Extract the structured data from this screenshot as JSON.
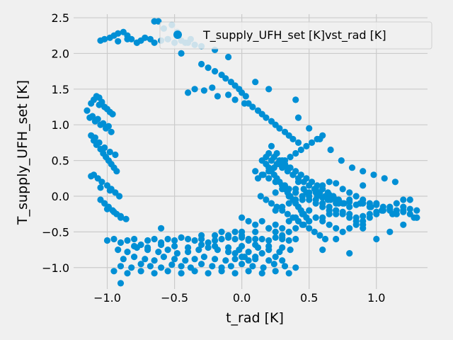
{
  "colors": {
    "background": "#f0f0f0",
    "grid": "#cbcbcb",
    "series": "#008fd5"
  },
  "chart_data": {
    "type": "scatter",
    "xlabel": "t_rad [K]",
    "ylabel": "T_supply_UFH_set [K]",
    "xlim": [
      -1.25,
      1.38
    ],
    "ylim": [
      -1.3,
      2.55
    ],
    "xticks": [
      -1.0,
      -0.5,
      0.0,
      0.5,
      1.0
    ],
    "xtick_labels": [
      "−1.0",
      "−0.5",
      "0.0",
      "0.5",
      "1.0"
    ],
    "yticks": [
      -1.0,
      -0.5,
      0.0,
      0.5,
      1.0,
      1.5,
      2.0,
      2.5
    ],
    "ytick_labels": [
      "−1.0",
      "−0.5",
      "0.0",
      "0.5",
      "1.0",
      "1.5",
      "2.0",
      "2.5"
    ],
    "grid": true,
    "legend_position": "top-right",
    "series": [
      {
        "name": "T_supply_UFH_set [K]vst_rad [K]",
        "x": [
          -1.05,
          -1.02,
          -0.98,
          -0.95,
          -0.92,
          -0.88,
          -0.85,
          -0.82,
          -0.78,
          -0.75,
          -0.72,
          -0.68,
          -0.65,
          -0.6,
          -0.55,
          -0.5,
          -0.45,
          -0.42,
          -0.38,
          -0.35,
          -0.92,
          -0.85,
          -0.78,
          -0.62,
          -0.58,
          -0.52,
          -0.48,
          -0.4,
          -0.3,
          -0.25,
          -0.2,
          -0.15,
          -0.12,
          -0.08,
          -0.05,
          -0.02,
          0.0,
          0.03,
          0.05,
          0.08,
          0.12,
          0.15,
          0.18,
          0.22,
          0.25,
          0.28,
          0.32,
          0.35,
          0.38,
          0.42,
          -0.4,
          -0.35,
          -0.28,
          -0.22,
          -0.18,
          -0.1,
          -0.05,
          0.02,
          -1.15,
          -1.12,
          -1.1,
          -1.08,
          -1.06,
          -1.04,
          -1.02,
          -1.0,
          -0.98,
          -0.96,
          -1.13,
          -1.09,
          -1.05,
          -1.01,
          -0.97,
          -1.11,
          -1.07,
          -1.03,
          -0.99,
          -1.06,
          -1.12,
          -1.1,
          -1.08,
          -1.05,
          -1.03,
          -1.01,
          -0.99,
          -0.97,
          -0.95,
          -0.93,
          -1.09,
          -1.06,
          -1.02,
          -0.98,
          -0.94,
          -1.1,
          -1.07,
          -1.04,
          -1.0,
          -0.97,
          -0.94,
          -0.91,
          -1.12,
          -1.05,
          -0.98,
          -1.05,
          -1.02,
          -0.99,
          -0.96,
          -0.93,
          -0.9,
          -1.0,
          -0.95,
          -0.9,
          -0.86,
          -1.0,
          -0.95,
          -0.9,
          -0.85,
          -0.8,
          -0.75,
          -0.7,
          -0.65,
          -0.6,
          -0.55,
          -0.5,
          -0.45,
          -0.4,
          -0.35,
          -0.3,
          -0.25,
          -0.2,
          -0.15,
          -0.1,
          -0.05,
          0.0,
          0.05,
          0.1,
          0.15,
          0.2,
          0.25,
          0.3,
          0.35,
          0.4,
          -0.92,
          -0.85,
          -0.78,
          -0.7,
          -0.62,
          -0.55,
          -0.48,
          -0.4,
          -0.32,
          -0.25,
          -0.18,
          -0.1,
          -0.02,
          0.05,
          0.12,
          0.2,
          0.28,
          0.36,
          -0.88,
          -0.8,
          -0.72,
          -0.65,
          -0.58,
          -0.5,
          -0.42,
          -0.35,
          -0.28,
          -0.2,
          -0.12,
          -0.05,
          0.02,
          0.1,
          -0.9,
          -0.82,
          -0.75,
          -0.68,
          -0.6,
          -0.52,
          -0.45,
          -0.38,
          -0.3,
          -0.22,
          -0.15,
          -0.08,
          0.0,
          0.08,
          0.16,
          0.24,
          0.32,
          0.4,
          -0.95,
          -0.85,
          -0.75,
          -0.65,
          -0.55,
          -0.45,
          -0.35,
          -0.25,
          -0.15,
          -0.05,
          0.05,
          0.15,
          0.25,
          0.35,
          -0.8,
          -0.7,
          -0.6,
          -0.5,
          -0.4,
          -0.3,
          -0.2,
          -0.1,
          0.0,
          0.1,
          0.2,
          0.3,
          -0.9,
          -0.6,
          -0.3,
          0.0,
          0.3,
          0.15,
          0.18,
          0.2,
          0.22,
          0.24,
          0.26,
          0.28,
          0.3,
          0.32,
          0.34,
          0.36,
          0.38,
          0.4,
          0.42,
          0.44,
          0.46,
          0.48,
          0.5,
          0.12,
          0.16,
          0.2,
          0.24,
          0.28,
          0.32,
          0.36,
          0.4,
          0.44,
          0.48,
          0.52,
          0.56,
          0.14,
          0.18,
          0.22,
          0.26,
          0.3,
          0.34,
          0.38,
          0.42,
          0.46,
          0.5,
          0.54,
          0.58,
          0.62,
          0.1,
          0.15,
          0.2,
          0.25,
          0.3,
          0.35,
          0.4,
          0.45,
          0.5,
          0.55,
          0.6,
          0.65,
          0.7,
          0.18,
          0.22,
          0.26,
          0.3,
          0.34,
          0.38,
          0.42,
          0.46,
          0.5,
          0.54,
          0.58,
          0.62,
          0.66,
          0.7,
          0.2,
          0.24,
          0.28,
          0.32,
          0.36,
          0.4,
          0.44,
          0.48,
          0.52,
          0.56,
          0.6,
          0.64,
          0.68,
          0.72,
          0.76,
          0.8,
          0.22,
          0.26,
          0.3,
          0.34,
          0.38,
          0.42,
          0.46,
          0.5,
          0.55,
          0.6,
          0.65,
          0.7,
          0.75,
          0.8,
          0.85,
          0.9,
          0.25,
          0.3,
          0.35,
          0.4,
          0.45,
          0.5,
          0.55,
          0.6,
          0.65,
          0.7,
          0.75,
          0.8,
          0.85,
          0.9,
          0.95,
          1.0,
          1.05,
          1.1,
          1.15,
          1.2,
          1.25,
          1.3,
          0.55,
          0.6,
          0.65,
          0.7,
          0.75,
          0.8,
          0.85,
          0.9,
          0.95,
          1.0,
          1.05,
          1.1,
          1.15,
          1.2,
          1.25,
          0.6,
          0.7,
          0.8,
          0.9,
          1.0,
          1.1,
          1.2,
          0.2,
          0.25,
          0.3,
          0.35,
          0.4,
          0.45,
          0.5,
          0.55,
          0.6,
          0.65,
          0.7,
          0.75,
          0.8,
          0.85,
          0.9,
          0.95,
          1.0,
          1.05,
          1.1,
          1.15,
          1.2,
          1.25,
          1.3,
          0.0,
          0.05,
          0.1,
          0.15,
          0.2,
          0.25,
          0.3,
          0.35,
          0.4,
          0.45,
          0.5,
          -0.05,
          0.0,
          0.05,
          0.1,
          0.15,
          0.2,
          0.25,
          0.3,
          -0.2,
          -0.15,
          -0.1,
          -0.05,
          0.0,
          0.05,
          0.1,
          0.25,
          0.3,
          0.35,
          0.4,
          0.45,
          0.5,
          0.55,
          0.6,
          0.65,
          0.7,
          0.75,
          0.8,
          0.85,
          0.9,
          0.95,
          1.0,
          0.32,
          0.4,
          0.48,
          0.56,
          0.64,
          0.72,
          0.8,
          0.88,
          0.96,
          1.04,
          1.12,
          1.2,
          1.28,
          0.42,
          0.5,
          0.58,
          0.66,
          0.74,
          0.82,
          0.9,
          0.98,
          1.06,
          1.14,
          -0.65,
          -0.55,
          -0.45,
          -0.3,
          -0.2,
          -0.1,
          0.1,
          0.2,
          0.4,
          0.6,
          0.9,
          1.3
        ],
        "y": [
          2.18,
          2.2,
          2.22,
          2.25,
          2.28,
          2.3,
          2.25,
          2.2,
          2.15,
          2.18,
          2.22,
          2.2,
          2.15,
          2.18,
          2.2,
          2.15,
          2.18,
          2.15,
          2.2,
          2.12,
          2.17,
          2.2,
          2.15,
          2.45,
          2.35,
          2.4,
          2.3,
          2.15,
          1.85,
          1.8,
          1.75,
          1.7,
          1.65,
          1.6,
          1.55,
          1.5,
          1.45,
          1.4,
          1.3,
          1.25,
          1.2,
          1.15,
          1.1,
          1.05,
          1.0,
          0.95,
          0.9,
          0.85,
          0.8,
          0.75,
          1.45,
          1.5,
          1.48,
          1.52,
          1.4,
          1.42,
          1.35,
          1.3,
          1.2,
          1.3,
          1.35,
          1.4,
          1.38,
          1.32,
          1.25,
          1.22,
          1.18,
          1.15,
          1.1,
          1.05,
          1.0,
          0.95,
          0.9,
          1.12,
          1.08,
          1.02,
          0.98,
          1.28,
          0.85,
          0.78,
          0.72,
          0.66,
          0.6,
          0.55,
          0.5,
          0.45,
          0.4,
          0.35,
          0.82,
          0.75,
          0.68,
          0.62,
          0.58,
          0.3,
          0.25,
          0.2,
          0.15,
          0.1,
          0.05,
          0.0,
          0.28,
          0.12,
          0.08,
          -0.05,
          -0.1,
          -0.15,
          -0.2,
          -0.25,
          -0.3,
          -0.18,
          -0.22,
          -0.28,
          -0.32,
          -0.62,
          -0.6,
          -0.65,
          -0.62,
          -0.6,
          -0.68,
          -0.62,
          -0.6,
          -0.65,
          -0.6,
          -0.62,
          -0.58,
          -0.6,
          -0.62,
          -0.6,
          -0.65,
          -0.62,
          -0.6,
          -0.58,
          -0.6,
          -0.58,
          -0.62,
          -0.6,
          -0.6,
          -0.62,
          -0.58,
          -0.6,
          -0.62,
          -0.6,
          -0.75,
          -0.78,
          -0.72,
          -0.75,
          -0.78,
          -0.75,
          -0.8,
          -0.78,
          -0.75,
          -0.72,
          -0.75,
          -0.78,
          -0.75,
          -0.78,
          -0.72,
          -0.75,
          -0.78,
          -0.75,
          -0.88,
          -0.85,
          -0.88,
          -0.9,
          -0.85,
          -0.88,
          -0.9,
          -0.88,
          -0.85,
          -0.88,
          -0.9,
          -0.88,
          -0.85,
          -0.88,
          -0.98,
          -1.0,
          -0.95,
          -0.98,
          -1.0,
          -0.96,
          -0.98,
          -1.0,
          -0.95,
          -0.98,
          -1.0,
          -0.98,
          -0.95,
          -0.98,
          -1.0,
          -0.95,
          -0.98,
          -1.0,
          -1.05,
          -1.08,
          -1.05,
          -1.08,
          -1.05,
          -1.08,
          -1.05,
          -1.08,
          -1.05,
          -1.08,
          -1.05,
          -1.08,
          -1.05,
          -1.08,
          -0.7,
          -0.72,
          -0.68,
          -0.7,
          -0.72,
          -0.68,
          -0.7,
          -0.72,
          -0.7,
          -0.68,
          -0.7,
          -0.72,
          -1.22,
          -0.45,
          -0.55,
          -0.5,
          -0.58,
          0.5,
          0.45,
          0.4,
          0.35,
          0.3,
          0.25,
          0.2,
          0.15,
          0.1,
          0.05,
          0.0,
          -0.05,
          -0.1,
          -0.15,
          -0.2,
          -0.25,
          -0.3,
          -0.35,
          0.25,
          0.3,
          0.35,
          0.4,
          0.45,
          0.5,
          0.55,
          0.6,
          0.65,
          0.7,
          0.75,
          0.8,
          0.0,
          -0.05,
          -0.1,
          -0.15,
          -0.2,
          -0.25,
          -0.3,
          -0.35,
          -0.4,
          -0.45,
          -0.5,
          -0.55,
          -0.6,
          0.35,
          0.3,
          0.25,
          0.2,
          0.15,
          0.1,
          0.05,
          0.0,
          -0.05,
          -0.1,
          -0.15,
          -0.2,
          -0.25,
          0.55,
          0.5,
          0.45,
          0.4,
          0.35,
          0.3,
          0.25,
          0.2,
          0.15,
          0.1,
          0.05,
          0.0,
          -0.05,
          -0.1,
          0.6,
          0.55,
          0.5,
          0.45,
          0.4,
          0.35,
          0.3,
          0.25,
          0.2,
          0.15,
          0.1,
          0.05,
          0.0,
          -0.05,
          -0.1,
          -0.15,
          0.7,
          0.6,
          0.5,
          0.4,
          0.3,
          0.2,
          0.1,
          0.0,
          -0.05,
          -0.1,
          -0.15,
          -0.2,
          -0.25,
          -0.3,
          -0.35,
          -0.4,
          -0.2,
          -0.15,
          -0.1,
          -0.05,
          0.0,
          0.05,
          0.1,
          0.15,
          0.2,
          0.18,
          0.1,
          0.05,
          0.0,
          -0.05,
          -0.1,
          -0.1,
          -0.15,
          -0.2,
          -0.25,
          -0.2,
          -0.25,
          -0.3,
          -0.3,
          -0.35,
          -0.4,
          -0.45,
          -0.5,
          -0.45,
          -0.4,
          -0.35,
          -0.3,
          -0.25,
          -0.2,
          -0.15,
          -0.1,
          -0.05,
          -0.05,
          -0.75,
          -0.6,
          -0.8,
          -0.45,
          -0.6,
          -0.5,
          -0.4,
          -0.45,
          -0.5,
          -0.55,
          -0.5,
          -0.45,
          -0.4,
          -0.35,
          -0.3,
          -0.3,
          -0.25,
          -0.2,
          -0.22,
          -0.25,
          -0.3,
          -0.28,
          -0.25,
          -0.22,
          -0.2,
          -0.18,
          -0.2,
          -0.15,
          -0.18,
          -0.2,
          -0.3,
          -0.35,
          -0.4,
          -0.35,
          -0.45,
          -0.4,
          -0.45,
          -0.35,
          -0.3,
          -0.25,
          -0.2,
          -0.8,
          -0.85,
          -0.9,
          -0.85,
          -0.8,
          -0.9,
          -0.85,
          -0.9,
          -0.55,
          -0.5,
          -0.55,
          -0.5,
          -0.55,
          -0.6,
          -0.5,
          0.05,
          0.1,
          0.0,
          0.05,
          -0.05,
          0.0,
          0.05,
          -0.02,
          0.02,
          -0.05,
          -0.1,
          -0.08,
          -0.12,
          -0.1,
          -0.15,
          -0.12,
          0.15,
          0.1,
          0.05,
          0.0,
          -0.05,
          -0.1,
          -0.05,
          -0.1,
          -0.15,
          -0.2,
          -0.25,
          -0.22,
          -0.3,
          1.1,
          0.95,
          0.8,
          0.65,
          0.5,
          0.4,
          0.35,
          0.3,
          0.25,
          0.2,
          2.45,
          2.2,
          2.0,
          2.1,
          2.05,
          1.95,
          1.6,
          1.5,
          1.35,
          0.85,
          0.15,
          -0.3
        ]
      }
    ]
  }
}
